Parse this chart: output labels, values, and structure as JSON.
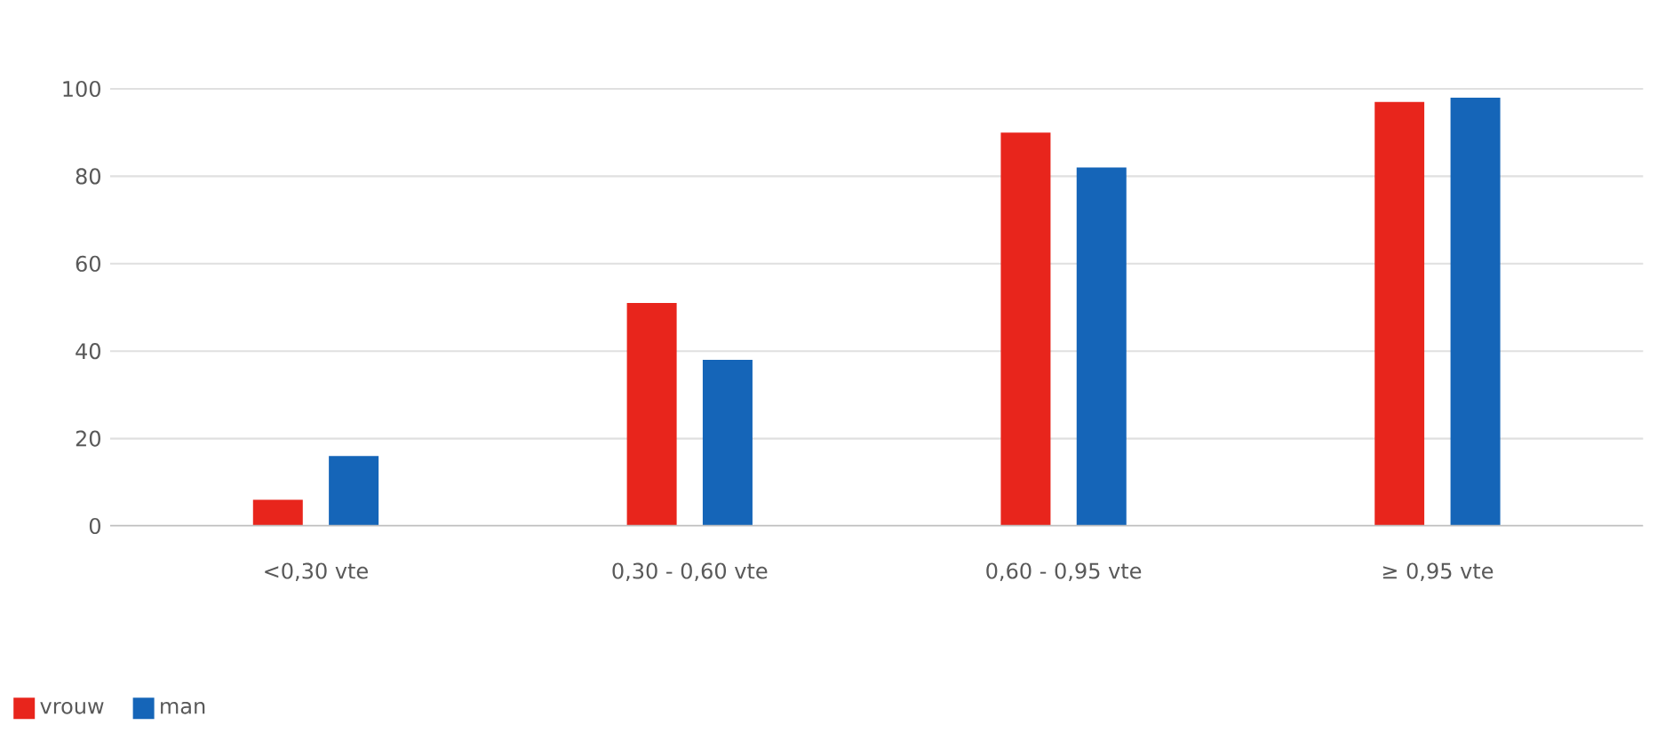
{
  "chart_data": {
    "type": "bar",
    "categories": [
      "<0,30 vte",
      "0,30 - 0,60 vte",
      "0,60 - 0,95 vte",
      "≥ 0,95 vte"
    ],
    "series": [
      {
        "name": "vrouw",
        "color": "#e8251c",
        "values": [
          6,
          51,
          90,
          97
        ]
      },
      {
        "name": "man",
        "color": "#1565b8",
        "values": [
          16,
          38,
          82,
          98
        ]
      }
    ],
    "ylim": [
      0,
      100
    ],
    "yticks": [
      0,
      20,
      40,
      60,
      80,
      100
    ],
    "grid": "y",
    "legend": "bottom left"
  }
}
